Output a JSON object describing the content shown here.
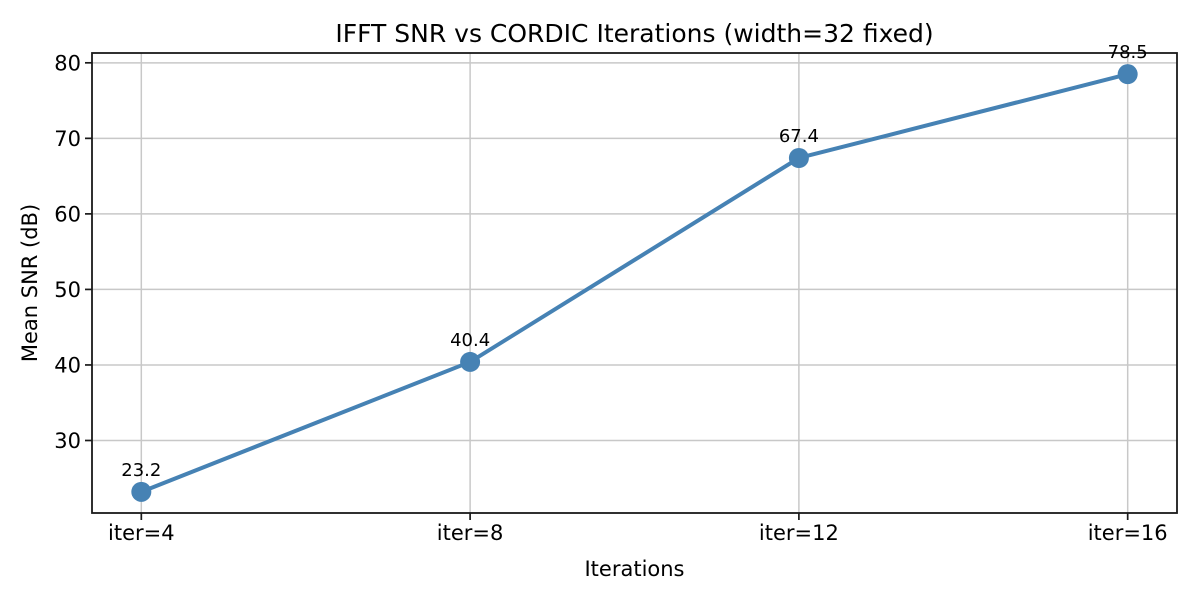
{
  "chart_data": {
    "type": "line",
    "title": "IFFT SNR vs CORDIC Iterations (width=32 fixed)",
    "xlabel": "Iterations",
    "ylabel": "Mean SNR (dB)",
    "categories": [
      "iter=4",
      "iter=8",
      "iter=12",
      "iter=16"
    ],
    "series": [
      {
        "name": "Mean SNR (dB)",
        "values": [
          23.2,
          40.4,
          67.4,
          78.5
        ]
      }
    ],
    "point_labels": [
      "23.2",
      "40.4",
      "67.4",
      "78.5"
    ],
    "yticks": [
      30,
      40,
      50,
      60,
      70,
      80
    ],
    "ytick_labels": [
      "30",
      "40",
      "50",
      "60",
      "70",
      "80"
    ],
    "ylim": [
      20.4,
      81.3
    ],
    "x_margin": 0.15,
    "grid": true,
    "legend": "none",
    "style": {
      "line_color": "#4682B4",
      "marker_color": "#4682B4",
      "grid_color": "#C8C8C8",
      "spine_color": "#1A1A1A",
      "text_color": "#000000",
      "background": "#FFFFFF"
    }
  }
}
